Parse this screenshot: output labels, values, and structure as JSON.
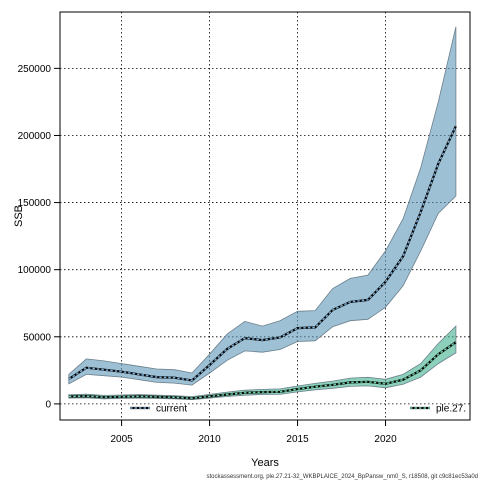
{
  "chart_data": {
    "type": "line",
    "title": "",
    "xlabel": "Years",
    "ylabel": "SSB",
    "caption": "stockassessment.org, ple.27.21-32_WKBPLAICE_2024_BpPansw_nm0_S, r18508, git c9c81ec53a0d",
    "xlim": [
      2001.5,
      2024.8
    ],
    "ylim": [
      -12000,
      292000
    ],
    "xticks": [
      2005,
      2010,
      2015,
      2020
    ],
    "yticks": [
      0,
      50000,
      100000,
      150000,
      200000,
      250000
    ],
    "ytick_labels": [
      "0",
      "50000",
      "100000",
      "150000",
      "200000",
      "250000"
    ],
    "grid": true,
    "legend": [
      {
        "label": "current",
        "position": "bottom-left"
      },
      {
        "label": "ple.27.",
        "position": "bottom-right"
      }
    ],
    "x": [
      2002,
      2003,
      2004,
      2005,
      2006,
      2007,
      2008,
      2009,
      2010,
      2011,
      2012,
      2013,
      2014,
      2015,
      2016,
      2017,
      2018,
      2019,
      2020,
      2021,
      2022,
      2023,
      2024
    ],
    "series": [
      {
        "name": "current",
        "color": "#000080",
        "fill": "#5b96b8",
        "values": [
          18500,
          27000,
          25500,
          24000,
          22000,
          20000,
          19500,
          17500,
          29000,
          41000,
          49000,
          47500,
          49500,
          56500,
          57000,
          70000,
          76000,
          77500,
          91000,
          110000,
          143000,
          179000,
          207000
        ],
        "upper": [
          22000,
          33500,
          32000,
          30000,
          28000,
          26000,
          25500,
          23000,
          37000,
          52000,
          61500,
          58000,
          62000,
          69000,
          69500,
          86000,
          93500,
          96000,
          114000,
          138000,
          176000,
          225000,
          281000
        ],
        "lower": [
          15000,
          22000,
          21000,
          20000,
          18000,
          16000,
          15500,
          14000,
          23000,
          32500,
          39500,
          38500,
          40500,
          46500,
          47000,
          57500,
          62000,
          63000,
          72000,
          88000,
          114000,
          142000,
          155000
        ]
      },
      {
        "name": "ple.27.",
        "color": "#004000",
        "fill": "#40b090",
        "values": [
          5500,
          5800,
          5000,
          5300,
          5600,
          5200,
          4900,
          4200,
          5600,
          7000,
          8300,
          8800,
          9000,
          11000,
          12800,
          14200,
          16000,
          16500,
          15000,
          18000,
          25000,
          37000,
          46000
        ],
        "upper": [
          6800,
          7200,
          6300,
          6600,
          7000,
          6500,
          6100,
          5400,
          7100,
          8800,
          10200,
          10800,
          11200,
          13300,
          15300,
          17000,
          19200,
          19800,
          18300,
          22000,
          30000,
          45000,
          58000
        ],
        "lower": [
          4300,
          4500,
          3800,
          4100,
          4300,
          4000,
          3800,
          3200,
          4300,
          5500,
          6500,
          7000,
          7100,
          8900,
          10500,
          11600,
          13000,
          13400,
          12000,
          14600,
          20000,
          30000,
          38000
        ]
      }
    ]
  }
}
